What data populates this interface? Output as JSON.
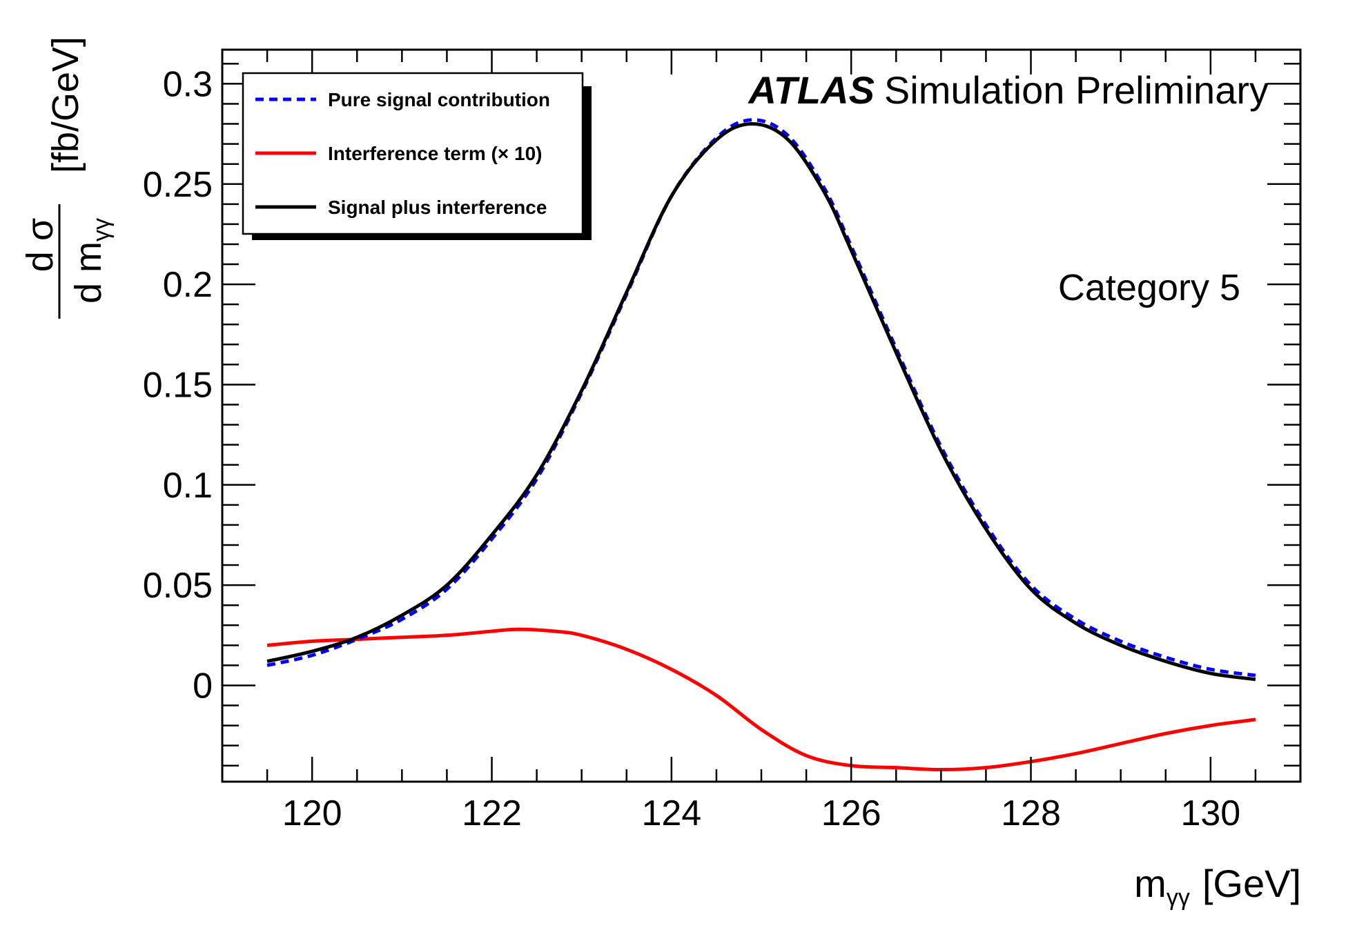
{
  "chart_data": {
    "type": "line",
    "xlabel": {
      "main": "m",
      "sub": "γγ",
      "unit": "[GeV]"
    },
    "ylabel": {
      "numerator": "d σ",
      "denominator_main": "d m",
      "denominator_sub": "γγ",
      "unit": "[fb/GeV]"
    },
    "xlim": [
      119.0,
      131.0
    ],
    "ylim": [
      -0.048,
      0.317
    ],
    "x_ticks": [
      120,
      122,
      124,
      126,
      128,
      130
    ],
    "x_tick_labels": [
      "120",
      "122",
      "124",
      "126",
      "128",
      "130"
    ],
    "y_ticks": [
      0,
      0.05,
      0.1,
      0.15,
      0.2,
      0.25,
      0.3
    ],
    "y_tick_labels": [
      "0",
      "0.05",
      "0.1",
      "0.15",
      "0.2",
      "0.25",
      "0.3"
    ],
    "grid": false,
    "legend_position": "top-left",
    "annotations": {
      "experiment": "ATLAS",
      "experiment_suffix": "Simulation Preliminary",
      "category": "Category 5"
    },
    "series": [
      {
        "name": "Pure signal contribution",
        "color": "#0000ff",
        "style": "dashed",
        "x": [
          119.5,
          120.0,
          120.5,
          121.0,
          121.5,
          122.0,
          122.5,
          123.0,
          123.5,
          124.0,
          124.5,
          124.9,
          125.3,
          125.7,
          126.0,
          126.5,
          127.0,
          127.5,
          128.0,
          128.5,
          129.0,
          129.5,
          130.0,
          130.5
        ],
        "y": [
          0.01,
          0.015,
          0.023,
          0.033,
          0.048,
          0.073,
          0.103,
          0.146,
          0.195,
          0.244,
          0.273,
          0.282,
          0.274,
          0.248,
          0.219,
          0.168,
          0.119,
          0.08,
          0.05,
          0.033,
          0.022,
          0.014,
          0.008,
          0.005
        ]
      },
      {
        "name": "Interference term (× 10)",
        "color": "#ff0000",
        "style": "solid",
        "x": [
          119.5,
          120.0,
          120.5,
          121.0,
          121.5,
          122.0,
          122.3,
          122.7,
          123.0,
          123.5,
          124.0,
          124.5,
          125.0,
          125.5,
          126.0,
          126.5,
          127.0,
          127.5,
          128.0,
          128.5,
          129.0,
          129.5,
          130.0,
          130.5
        ],
        "y": [
          0.02,
          0.022,
          0.023,
          0.024,
          0.025,
          0.027,
          0.028,
          0.027,
          0.025,
          0.018,
          0.008,
          -0.005,
          -0.022,
          -0.035,
          -0.04,
          -0.041,
          -0.042,
          -0.041,
          -0.038,
          -0.034,
          -0.029,
          -0.024,
          -0.02,
          -0.017
        ]
      },
      {
        "name": "Signal plus interference",
        "color": "#000000",
        "style": "solid",
        "x": [
          119.5,
          120.0,
          120.5,
          121.0,
          121.5,
          122.0,
          122.5,
          123.0,
          123.5,
          124.0,
          124.5,
          124.9,
          125.3,
          125.7,
          126.0,
          126.5,
          127.0,
          127.5,
          128.0,
          128.5,
          129.0,
          129.5,
          130.0,
          130.5
        ],
        "y": [
          0.012,
          0.017,
          0.024,
          0.035,
          0.05,
          0.075,
          0.105,
          0.147,
          0.196,
          0.244,
          0.272,
          0.28,
          0.272,
          0.246,
          0.217,
          0.166,
          0.117,
          0.078,
          0.048,
          0.031,
          0.02,
          0.012,
          0.006,
          0.003
        ]
      }
    ]
  }
}
